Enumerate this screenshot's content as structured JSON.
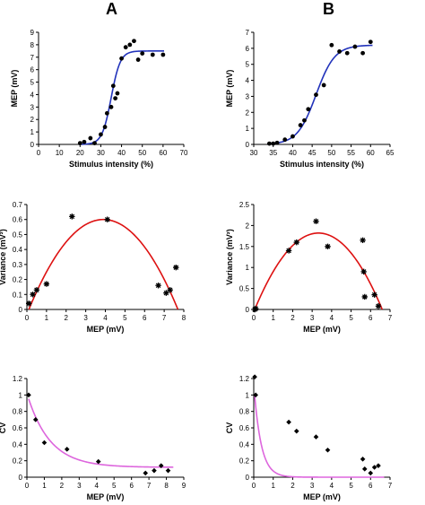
{
  "panel_labels": [
    "A",
    "B"
  ],
  "colors": {
    "sigmoid": "#2233bb",
    "parabola": "#dd1111",
    "decay": "#dd66dd",
    "points": "#000000"
  },
  "chart_data": [
    {
      "id": "A1",
      "type": "scatter",
      "fit": "sigmoid",
      "xlabel": "Stimulus intensity (%)",
      "ylabel": "MEP (mV)",
      "xlim": [
        0,
        70
      ],
      "ylim": [
        0,
        9
      ],
      "xticks": [
        0,
        10,
        20,
        30,
        40,
        50,
        60,
        70
      ],
      "yticks": [
        0,
        1,
        2,
        3,
        4,
        5,
        6,
        7,
        8,
        9
      ],
      "x": [
        20,
        22,
        25,
        27,
        30,
        32,
        33,
        35,
        36,
        37,
        38,
        40,
        42,
        44,
        46,
        48,
        50,
        55,
        60
      ],
      "y": [
        0.1,
        0.2,
        0.5,
        0.1,
        0.8,
        1.4,
        2.5,
        3.0,
        4.7,
        3.7,
        4.1,
        6.9,
        7.8,
        8.0,
        8.3,
        6.8,
        7.3,
        7.2,
        7.2
      ],
      "fit_params": {
        "top": 7.5,
        "x50": 35,
        "k": 2.2
      }
    },
    {
      "id": "B1",
      "type": "scatter",
      "fit": "sigmoid",
      "xlabel": "Stimulus intensity (%)",
      "ylabel": "MEP (mV)",
      "xlim": [
        30,
        65
      ],
      "ylim": [
        0,
        7
      ],
      "xticks": [
        30,
        35,
        40,
        45,
        50,
        55,
        60,
        65
      ],
      "yticks": [
        0,
        1,
        2,
        3,
        4,
        5,
        6,
        7
      ],
      "x": [
        34,
        35,
        36,
        38,
        40,
        42,
        43,
        44,
        46,
        48,
        50,
        52,
        54,
        56,
        58,
        60
      ],
      "y": [
        0.05,
        0.05,
        0.1,
        0.3,
        0.5,
        1.2,
        1.5,
        2.2,
        3.1,
        3.7,
        6.2,
        5.8,
        5.7,
        6.1,
        5.7,
        6.4
      ],
      "fit_params": {
        "top": 6.2,
        "x50": 46,
        "k": 2.4
      }
    },
    {
      "id": "A2",
      "type": "scatter",
      "fit": "parabola",
      "xlabel": "MEP (mV)",
      "ylabel": "Variance (mV²)",
      "xlim": [
        0,
        8
      ],
      "ylim": [
        0,
        0.7
      ],
      "xticks": [
        0,
        1,
        2,
        3,
        4,
        5,
        6,
        7,
        8
      ],
      "yticks": [
        0,
        0.1,
        0.2,
        0.3,
        0.4,
        0.5,
        0.6,
        0.7
      ],
      "x": [
        0.1,
        0.3,
        0.5,
        1.0,
        2.3,
        4.1,
        6.7,
        7.1,
        7.3,
        7.6
      ],
      "y": [
        0.04,
        0.1,
        0.13,
        0.17,
        0.62,
        0.6,
        0.16,
        0.11,
        0.13,
        0.28
      ],
      "fit_params": {
        "x0": 0.1,
        "x1": 7.7,
        "peak": 0.6
      }
    },
    {
      "id": "B2",
      "type": "scatter",
      "fit": "parabola",
      "xlabel": "MEP (mV)",
      "ylabel": "Variance (mV²)",
      "xlim": [
        0,
        7
      ],
      "ylim": [
        0,
        2.5
      ],
      "xticks": [
        0,
        1,
        2,
        3,
        4,
        5,
        6,
        7
      ],
      "yticks": [
        0,
        0.5,
        1.0,
        1.5,
        2.0,
        2.5
      ],
      "x": [
        0.05,
        0.1,
        1.8,
        2.2,
        3.2,
        3.8,
        5.6,
        5.65,
        5.7,
        6.2,
        6.4
      ],
      "y": [
        0.0,
        0.02,
        1.4,
        1.6,
        2.1,
        1.5,
        1.65,
        0.9,
        0.3,
        0.35,
        0.08
      ],
      "fit_params": {
        "x0": 0.05,
        "x1": 6.6,
        "peak": 1.82
      }
    },
    {
      "id": "A3",
      "type": "scatter",
      "fit": "decay",
      "xlabel": "MEP (mV)",
      "ylabel": "CV",
      "xlim": [
        0,
        9
      ],
      "ylim": [
        0,
        1.2
      ],
      "xticks": [
        0,
        1,
        2,
        3,
        4,
        5,
        6,
        7,
        8,
        9
      ],
      "yticks": [
        0,
        0.2,
        0.4,
        0.6,
        0.8,
        1.0,
        1.2
      ],
      "x": [
        0.1,
        0.5,
        1.0,
        2.3,
        4.1,
        6.8,
        7.3,
        7.7,
        8.1
      ],
      "y": [
        1.0,
        0.7,
        0.42,
        0.34,
        0.19,
        0.05,
        0.08,
        0.14,
        0.08
      ],
      "fit_params": {
        "a": 0.9,
        "b": 0.12,
        "k": 1.3
      }
    },
    {
      "id": "B3",
      "type": "scatter",
      "fit": "decay",
      "xlabel": "MEP (mV)",
      "ylabel": "CV",
      "xlim": [
        0,
        7
      ],
      "ylim": [
        0,
        1.2
      ],
      "xticks": [
        0,
        1,
        2,
        3,
        4,
        5,
        6,
        7
      ],
      "yticks": [
        0,
        0.2,
        0.4,
        0.6,
        0.8,
        1.0,
        1.2
      ],
      "x": [
        0.05,
        0.1,
        1.8,
        2.2,
        3.2,
        3.8,
        5.6,
        5.7,
        6.0,
        6.2,
        6.4
      ],
      "y": [
        1.22,
        1.0,
        0.67,
        0.56,
        0.49,
        0.33,
        0.22,
        0.1,
        0.05,
        0.12,
        0.14
      ],
      "fit_params": {
        "a": 1.13,
        "b": 0.0,
        "k": 0.37
      }
    }
  ]
}
